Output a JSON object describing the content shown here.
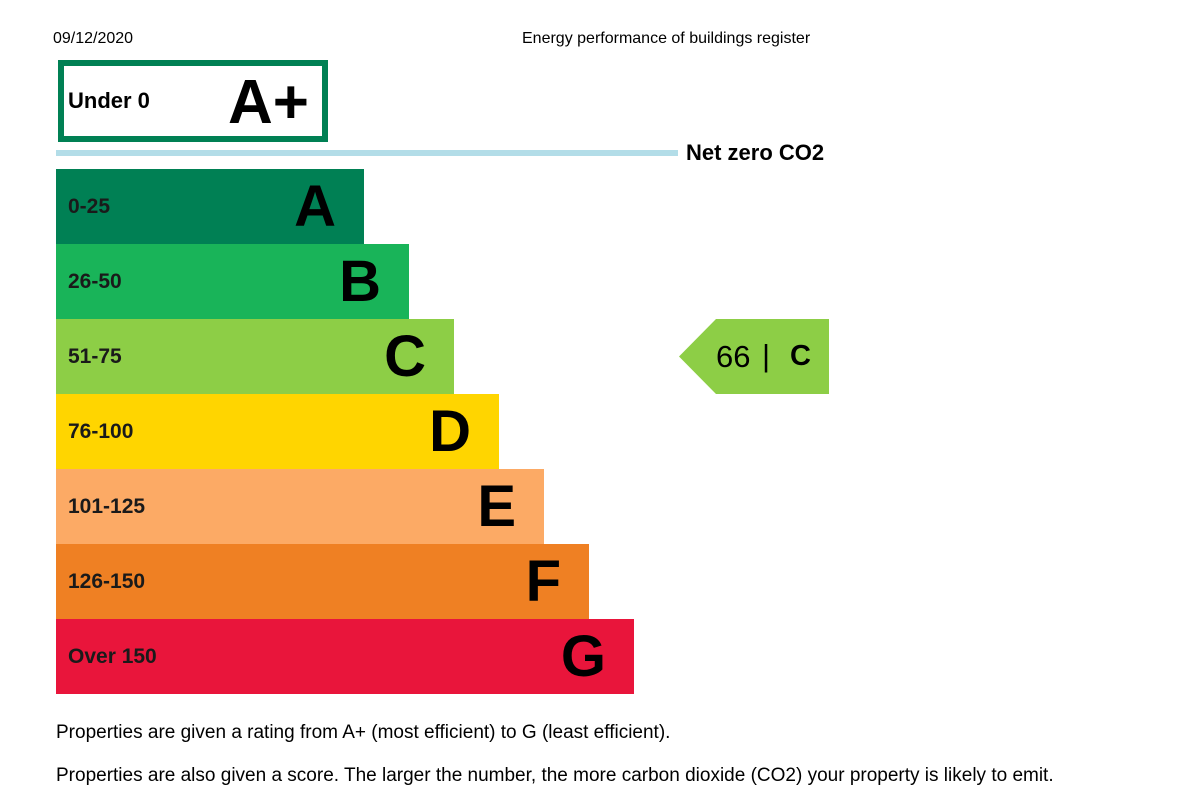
{
  "header": {
    "date": "09/12/2020",
    "title": "Energy performance of buildings register"
  },
  "aplus": {
    "range": "Under 0",
    "letter": "A+",
    "color": "#008054"
  },
  "net_zero": {
    "label": "Net zero CO2",
    "color": "#b3dde8"
  },
  "bands": [
    {
      "range": "0-25",
      "letter": "A",
      "color": "#008054"
    },
    {
      "range": "26-50",
      "letter": "B",
      "color": "#19b459"
    },
    {
      "range": "51-75",
      "letter": "C",
      "color": "#8dce46"
    },
    {
      "range": "76-100",
      "letter": "D",
      "color": "#ffd500"
    },
    {
      "range": "101-125",
      "letter": "E",
      "color": "#fcaa65"
    },
    {
      "range": "126-150",
      "letter": "F",
      "color": "#ef8023"
    },
    {
      "range": "Over 150",
      "letter": "G",
      "color": "#e9153b"
    }
  ],
  "current_rating": {
    "score": "66",
    "separator": "|",
    "letter": "C",
    "color": "#8dce46"
  },
  "notes": [
    "Properties are given a rating from A+ (most efficient) to G (least efficient).",
    "Properties are also given a score. The larger the number, the more carbon dioxide (CO2) your property is likely to emit."
  ]
}
